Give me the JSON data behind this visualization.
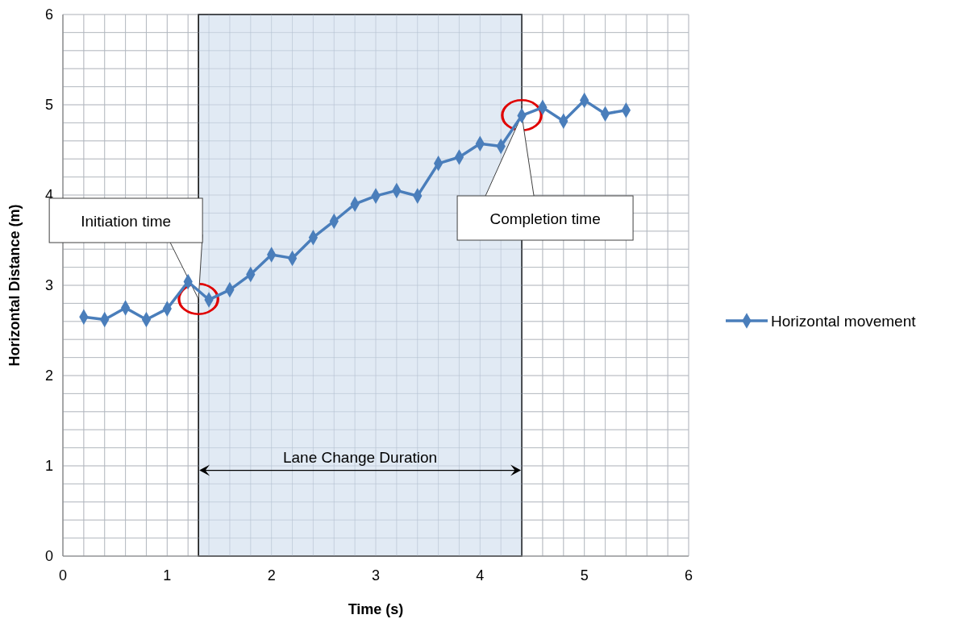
{
  "chart_data": {
    "type": "line",
    "xlabel": "Time (s)",
    "ylabel": "Horizontal Distance (m)",
    "xlim": [
      0,
      6
    ],
    "xticks": [
      0,
      1,
      2,
      3,
      4,
      5,
      6
    ],
    "ylim": [
      0,
      6
    ],
    "yticks": [
      0,
      1,
      2,
      3,
      4,
      5,
      6
    ],
    "grid": true,
    "legend": "right",
    "marker": "diamond",
    "line_style": "solid",
    "x": [
      0.2,
      0.4,
      0.6,
      0.8,
      1.0,
      1.2,
      1.4,
      1.6,
      1.8,
      2.0,
      2.2,
      2.4,
      2.6,
      2.8,
      3.0,
      3.2,
      3.4,
      3.6,
      3.8,
      4.0,
      4.2,
      4.4,
      4.6,
      4.8,
      5.0,
      5.2,
      5.4
    ],
    "series": [
      {
        "name": "Horizontal movement",
        "color": "#4a7ebb",
        "values": [
          2.65,
          2.62,
          2.75,
          2.62,
          2.74,
          3.04,
          2.84,
          2.95,
          3.12,
          3.34,
          3.3,
          3.53,
          3.71,
          3.9,
          3.99,
          4.05,
          3.99,
          4.35,
          4.42,
          4.57,
          4.54,
          4.88,
          4.97,
          4.82,
          5.05,
          4.9,
          4.94
        ]
      }
    ],
    "bands": [
      {
        "axis": "x",
        "from": 1.3,
        "to": 4.4,
        "label": "Lane Change Duration",
        "color": "#dce6f2"
      }
    ],
    "annotations": [
      "Initiation time",
      "Completion time"
    ]
  }
}
